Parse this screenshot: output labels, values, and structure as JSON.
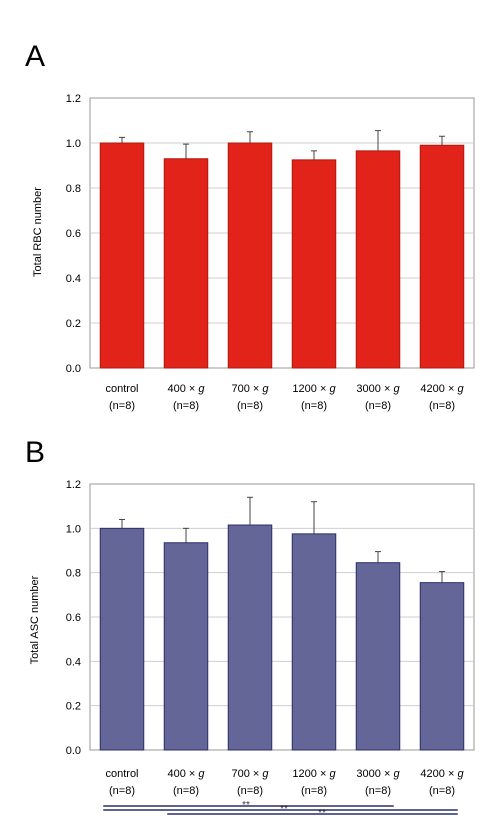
{
  "chart_data": [
    {
      "type": "bar",
      "panel": "A",
      "ylabel": "Total RBC number",
      "ylim": [
        0,
        1.2
      ],
      "yticks": [
        "0.0",
        "0.2",
        "0.4",
        "0.6",
        "0.8",
        "1.0",
        "1.2"
      ],
      "categories": [
        {
          "name": "control",
          "name_g": "",
          "n": "(n=8)"
        },
        {
          "name": "400 × ",
          "name_g": "g",
          "n": "(n=8)"
        },
        {
          "name": "700 × ",
          "name_g": "g",
          "n": "(n=8)"
        },
        {
          "name": "1200 × ",
          "name_g": "g",
          "n": "(n=8)"
        },
        {
          "name": "3000 × ",
          "name_g": "g",
          "n": "(n=8)"
        },
        {
          "name": "4200 × ",
          "name_g": "g",
          "n": "(n=8)"
        }
      ],
      "values": [
        1.0,
        0.93,
        1.0,
        0.925,
        0.965,
        0.99
      ],
      "errors": [
        0.025,
        0.065,
        0.05,
        0.04,
        0.09,
        0.04
      ],
      "bar_color": "#e2231a",
      "grid": true
    },
    {
      "type": "bar",
      "panel": "B",
      "ylabel": "Total ASC number",
      "ylim": [
        0,
        1.2
      ],
      "yticks": [
        "0.0",
        "0.2",
        "0.4",
        "0.6",
        "0.8",
        "1.0",
        "1.2"
      ],
      "categories": [
        {
          "name": "control",
          "name_g": "",
          "n": "(n=8)"
        },
        {
          "name": "400 × ",
          "name_g": "g",
          "n": "(n=8)"
        },
        {
          "name": "700 × ",
          "name_g": "g",
          "n": "(n=8)"
        },
        {
          "name": "1200 × ",
          "name_g": "g",
          "n": "(n=8)"
        },
        {
          "name": "3000 × ",
          "name_g": "g",
          "n": "(n=8)"
        },
        {
          "name": "4200 × ",
          "name_g": "g",
          "n": "(n=8)"
        }
      ],
      "values": [
        1.0,
        0.935,
        1.015,
        0.975,
        0.845,
        0.755
      ],
      "errors": [
        0.04,
        0.065,
        0.125,
        0.145,
        0.05,
        0.05
      ],
      "bar_color": "#636696",
      "grid": true,
      "significance": [
        {
          "from": "control",
          "to": "3000 × g",
          "label": "**"
        },
        {
          "from": "control",
          "to": "4200 × g",
          "label": "**"
        },
        {
          "from": "400 × g",
          "to": "4200 × g",
          "label": "**"
        }
      ]
    }
  ]
}
